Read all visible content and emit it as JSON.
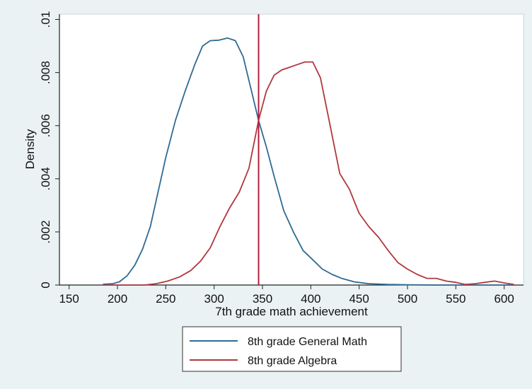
{
  "chart_data": {
    "type": "line",
    "title": "",
    "xlabel": "7th grade math achievement",
    "ylabel": "Density",
    "xlim": [
      140,
      620
    ],
    "ylim": [
      0,
      0.0102
    ],
    "x_ticks": [
      150,
      200,
      250,
      300,
      350,
      400,
      450,
      500,
      550,
      600
    ],
    "x_tick_labels": [
      "150",
      "200",
      "250",
      "300",
      "350",
      "400",
      "450",
      "500",
      "550",
      "600"
    ],
    "y_ticks": [
      0,
      0.002,
      0.004,
      0.006,
      0.008,
      0.01
    ],
    "y_tick_labels": [
      "0",
      ".002",
      ".004",
      ".006",
      ".008",
      ".01"
    ],
    "grid": false,
    "legend_position": "bottom",
    "vertical_line": {
      "x": 346,
      "color": "#b0203a"
    },
    "series": [
      {
        "name": "8th grade General Math",
        "color": "#2f6a94",
        "x": [
          185,
          195,
          202,
          210,
          218,
          226,
          234,
          242,
          250,
          260,
          270,
          280,
          288,
          296,
          305,
          314,
          322,
          330,
          338,
          346,
          354,
          362,
          372,
          382,
          392,
          402,
          412,
          422,
          432,
          445,
          460,
          480,
          500,
          530,
          560,
          590,
          610
        ],
        "values": [
          3e-05,
          5e-05,
          0.00012,
          0.00035,
          0.00075,
          0.00135,
          0.0022,
          0.0035,
          0.0048,
          0.0062,
          0.0073,
          0.0083,
          0.009,
          0.0092,
          0.00922,
          0.0093,
          0.0092,
          0.0086,
          0.0074,
          0.0062,
          0.0052,
          0.0041,
          0.0028,
          0.002,
          0.0013,
          0.00095,
          0.0006,
          0.0004,
          0.00025,
          0.00012,
          5e-05,
          2e-05,
          1e-05,
          0,
          0,
          0,
          0
        ]
      },
      {
        "name": "8th grade Algebra",
        "color": "#b0383d",
        "x": [
          185,
          200,
          215,
          228,
          240,
          252,
          264,
          276,
          286,
          296,
          306,
          316,
          326,
          336,
          346,
          354,
          362,
          370,
          378,
          386,
          394,
          402,
          410,
          420,
          430,
          440,
          450,
          460,
          470,
          480,
          490,
          500,
          510,
          520,
          530,
          540,
          550,
          560,
          570,
          580,
          590,
          600,
          610
        ],
        "values": [
          0,
          0,
          0,
          0,
          5e-05,
          0.00015,
          0.0003,
          0.00055,
          0.0009,
          0.0014,
          0.0022,
          0.0029,
          0.0035,
          0.0044,
          0.0062,
          0.0073,
          0.0079,
          0.0081,
          0.0082,
          0.0083,
          0.0084,
          0.0084,
          0.0078,
          0.006,
          0.0042,
          0.0036,
          0.0027,
          0.0022,
          0.0018,
          0.0013,
          0.00085,
          0.0006,
          0.0004,
          0.00025,
          0.00025,
          0.00015,
          0.0001,
          2e-05,
          5e-05,
          0.0001,
          0.00015,
          8e-05,
          2e-05
        ]
      }
    ]
  }
}
